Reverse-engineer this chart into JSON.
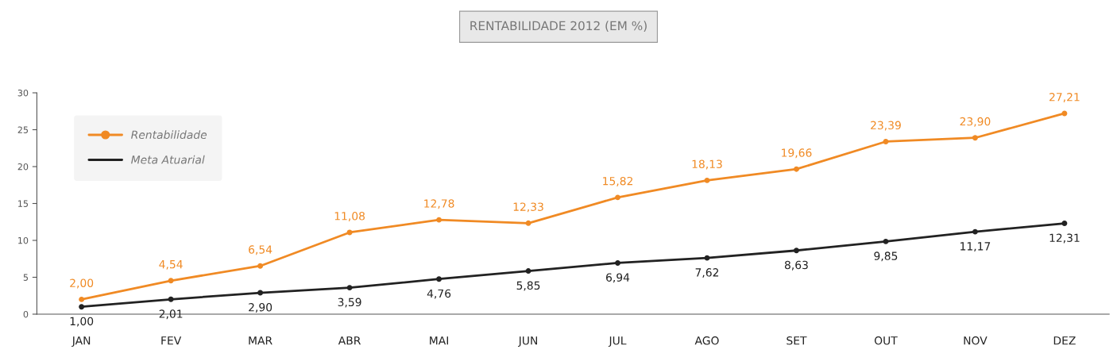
{
  "chart_data": {
    "type": "line",
    "title": "RENTABILIDADE 2012 (EM %)",
    "categories": [
      "JAN",
      "FEV",
      "MAR",
      "ABR",
      "MAI",
      "JUN",
      "JUL",
      "AGO",
      "SET",
      "OUT",
      "NOV",
      "DEZ"
    ],
    "series": [
      {
        "name": "Rentabilidade",
        "color": "#f08a24",
        "values": [
          2.0,
          4.54,
          6.54,
          11.08,
          12.78,
          12.33,
          15.82,
          18.13,
          19.66,
          23.39,
          23.9,
          27.21
        ],
        "value_labels": [
          "2,00",
          "4,54",
          "6,54",
          "11,08",
          "12,78",
          "12,33",
          "15,82",
          "18,13",
          "19,66",
          "23,39",
          "23,90",
          "27,21"
        ]
      },
      {
        "name": "Meta Atuarial",
        "color": "#222222",
        "values": [
          1.0,
          2.01,
          2.9,
          3.59,
          4.76,
          5.85,
          6.94,
          7.62,
          8.63,
          9.85,
          11.17,
          12.31
        ],
        "value_labels": [
          "1,00",
          "2,01",
          "2,90",
          "3,59",
          "4,76",
          "5,85",
          "6,94",
          "7,62",
          "8,63",
          "9,85",
          "11,17",
          "12,31"
        ]
      }
    ],
    "ylim": [
      0,
      30
    ],
    "yticks": [
      0,
      5,
      10,
      15,
      20,
      25,
      30
    ],
    "grid": false,
    "legend": "top left",
    "marker": "circle",
    "line_style": "solid"
  }
}
